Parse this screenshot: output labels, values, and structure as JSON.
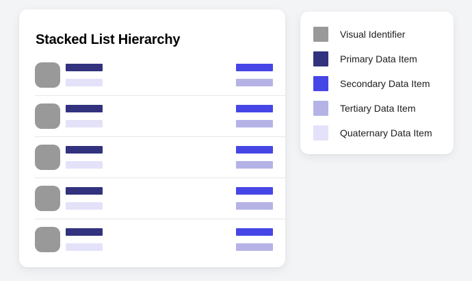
{
  "colors": {
    "page_background": "#f3f4f6",
    "card_background": "#ffffff",
    "divider": "#e7e7ea",
    "title_text": "#000000",
    "legend_text": "#1c1c1e",
    "identifier": "#999999",
    "primary": "#32327e",
    "secondary": "#4646e6",
    "tertiary": "#b5b3e6",
    "quaternary": "#e3e2f9"
  },
  "list_card": {
    "title": "Stacked List Hierarchy",
    "rows": [
      {
        "identifier": "identifier",
        "left_bars": [
          "primary",
          "quaternary"
        ],
        "right_bars": [
          "secondary",
          "tertiary"
        ]
      },
      {
        "identifier": "identifier",
        "left_bars": [
          "primary",
          "quaternary"
        ],
        "right_bars": [
          "secondary",
          "tertiary"
        ]
      },
      {
        "identifier": "identifier",
        "left_bars": [
          "primary",
          "quaternary"
        ],
        "right_bars": [
          "secondary",
          "tertiary"
        ]
      },
      {
        "identifier": "identifier",
        "left_bars": [
          "primary",
          "quaternary"
        ],
        "right_bars": [
          "secondary",
          "tertiary"
        ]
      },
      {
        "identifier": "identifier",
        "left_bars": [
          "primary",
          "quaternary"
        ],
        "right_bars": [
          "secondary",
          "tertiary"
        ]
      }
    ]
  },
  "legend": {
    "items": [
      {
        "label": "Visual Identifier",
        "color": "identifier"
      },
      {
        "label": "Primary Data Item",
        "color": "primary"
      },
      {
        "label": "Secondary Data Item",
        "color": "secondary"
      },
      {
        "label": "Tertiary Data Item",
        "color": "tertiary"
      },
      {
        "label": "Quaternary Data Item",
        "color": "quaternary"
      }
    ]
  }
}
